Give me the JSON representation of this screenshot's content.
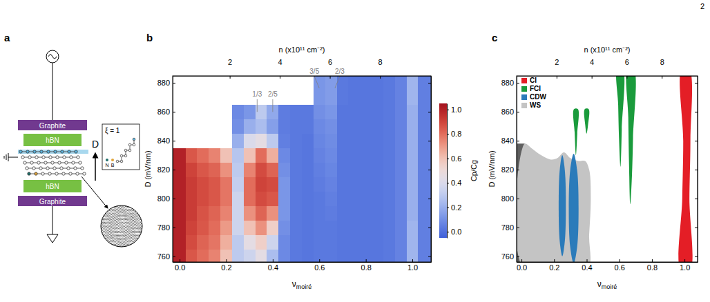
{
  "page_number": "2",
  "panel_labels": [
    "a",
    "b",
    "c"
  ],
  "schematic": {
    "top_gate": "Graphite",
    "top_dielectric": "hBN",
    "bottom_dielectric": "hBN",
    "bottom_gate": "Graphite",
    "field": "D",
    "inset": "ξ = 1",
    "atoms": [
      "N",
      "B"
    ]
  },
  "chart_data": [
    {
      "type": "heatmap",
      "x_label": "ν",
      "x_label_sub": "moiré",
      "y_label": "D (mV/nm)",
      "x2_label": "n (x10¹¹ cm⁻²)",
      "xlim": [
        -0.03,
        1.08
      ],
      "ylim": [
        756,
        885
      ],
      "x2lim": [
        -0.28,
        10.04
      ],
      "xticks": [
        {
          "value": 0,
          "label": "0.0"
        },
        0.2,
        0.4,
        0.6,
        0.8,
        {
          "value": 1,
          "label": "1.0"
        }
      ],
      "yticks": [
        760,
        780,
        800,
        820,
        840,
        860,
        880
      ],
      "x2ticks": [
        2,
        4,
        6,
        8
      ],
      "x_edges": [
        -0.03,
        0.025,
        0.075,
        0.125,
        0.175,
        0.225,
        0.275,
        0.325,
        0.375,
        0.425,
        0.475,
        0.525,
        0.575,
        0.625,
        0.675,
        0.725,
        0.775,
        0.825,
        0.875,
        0.925,
        0.975,
        1.025,
        1.08
      ],
      "y_edges": [
        756,
        765,
        775,
        785,
        795,
        805,
        815,
        825,
        835,
        845,
        855,
        865,
        875,
        885
      ],
      "z": [
        [
          1.0,
          0.85,
          0.8,
          0.75,
          0.6,
          0.3,
          0.35,
          0.45,
          0.25,
          0.08,
          0.03,
          0.02,
          0.03,
          0.03,
          0.02,
          0.02,
          0.02,
          0.02,
          0.03,
          0.06,
          0.22,
          0.05
        ],
        [
          1.0,
          0.88,
          0.82,
          0.78,
          0.65,
          0.3,
          0.45,
          0.55,
          0.35,
          0.08,
          0.03,
          0.02,
          0.03,
          0.03,
          0.02,
          0.02,
          0.02,
          0.02,
          0.03,
          0.06,
          0.22,
          0.05
        ],
        [
          1.0,
          0.9,
          0.85,
          0.8,
          0.7,
          0.35,
          0.6,
          0.72,
          0.55,
          0.1,
          0.03,
          0.02,
          0.03,
          0.03,
          0.02,
          0.02,
          0.02,
          0.02,
          0.03,
          0.06,
          0.22,
          0.05
        ],
        [
          1.0,
          0.92,
          0.86,
          0.82,
          0.75,
          0.35,
          0.72,
          0.82,
          0.72,
          0.12,
          0.03,
          0.02,
          0.03,
          0.04,
          0.02,
          0.02,
          0.02,
          0.02,
          0.03,
          0.06,
          0.2,
          0.05
        ],
        [
          1.0,
          0.92,
          0.88,
          0.85,
          0.78,
          0.35,
          0.8,
          0.88,
          0.85,
          0.12,
          0.03,
          0.02,
          0.03,
          0.05,
          0.02,
          0.02,
          0.02,
          0.02,
          0.03,
          0.06,
          0.2,
          0.05
        ],
        [
          1.0,
          0.92,
          0.88,
          0.85,
          0.78,
          0.32,
          0.8,
          0.9,
          0.88,
          0.12,
          0.03,
          0.02,
          0.04,
          0.06,
          0.02,
          0.02,
          0.02,
          0.02,
          0.03,
          0.06,
          0.2,
          0.05
        ],
        [
          1.0,
          0.9,
          0.85,
          0.82,
          0.72,
          0.3,
          0.75,
          0.88,
          0.82,
          0.1,
          0.03,
          0.02,
          0.05,
          0.07,
          0.02,
          0.02,
          0.02,
          0.02,
          0.03,
          0.06,
          0.2,
          0.05
        ],
        [
          1.0,
          0.85,
          0.8,
          0.75,
          0.6,
          0.28,
          0.6,
          0.8,
          0.65,
          0.08,
          0.03,
          0.02,
          0.06,
          0.08,
          0.02,
          0.02,
          0.02,
          0.02,
          0.03,
          0.06,
          0.2,
          0.05
        ],
        [
          null,
          null,
          null,
          null,
          null,
          0.2,
          0.4,
          0.45,
          0.3,
          0.05,
          0.03,
          0.02,
          0.07,
          0.09,
          0.02,
          0.02,
          0.02,
          0.02,
          0.03,
          0.06,
          0.2,
          0.05
        ],
        [
          null,
          null,
          null,
          null,
          null,
          0.1,
          0.2,
          0.25,
          0.15,
          0.04,
          0.03,
          0.03,
          0.08,
          0.1,
          0.02,
          0.02,
          0.02,
          0.02,
          0.03,
          0.06,
          0.2,
          0.05
        ],
        [
          null,
          null,
          null,
          null,
          null,
          0.08,
          0.12,
          0.3,
          0.18,
          0.04,
          0.03,
          0.03,
          0.1,
          0.12,
          0.02,
          0.02,
          0.02,
          0.02,
          0.03,
          0.06,
          0.2,
          0.05
        ],
        [
          null,
          null,
          null,
          null,
          null,
          null,
          null,
          null,
          null,
          null,
          null,
          null,
          0.12,
          0.14,
          0.03,
          0.02,
          0.02,
          0.02,
          0.03,
          0.06,
          0.22,
          0.05
        ],
        [
          null,
          null,
          null,
          null,
          null,
          null,
          null,
          null,
          null,
          null,
          null,
          null,
          0.12,
          0.14,
          0.03,
          0.02,
          0.02,
          0.02,
          0.03,
          0.06,
          0.22,
          0.05
        ]
      ],
      "colorbar": {
        "label": "Cp/Cg",
        "range": [
          -0.05,
          1.05
        ],
        "ticks": [
          {
            "value": 0,
            "label": "0.0"
          },
          0.2,
          0.4,
          0.6,
          0.8,
          {
            "value": 1,
            "label": "1.0"
          }
        ]
      },
      "annotations": [
        {
          "text": "1/3",
          "x": 0.333
        },
        {
          "text": "2/5",
          "x": 0.4
        },
        {
          "text": "3/5",
          "x": 0.6
        },
        {
          "text": "2/3",
          "x": 0.667
        }
      ]
    },
    {
      "type": "area",
      "x_label": "ν",
      "x_label_sub": "moiré",
      "y_label": "D (mV/nm)",
      "x2_label": "n (x10¹¹ cm⁻²)",
      "xlim": [
        -0.03,
        1.08
      ],
      "ylim": [
        756,
        885
      ],
      "x2lim": [
        -0.28,
        10.04
      ],
      "xticks": [
        {
          "value": 0,
          "label": "0.0"
        },
        0.2,
        0.4,
        0.6,
        0.8,
        {
          "value": 1,
          "label": "1.0"
        }
      ],
      "yticks": [
        760,
        780,
        800,
        820,
        840,
        860,
        880
      ],
      "x2ticks": [
        2,
        4,
        6,
        8
      ],
      "legend": "top-left",
      "series": [
        {
          "name": "CI",
          "color": "#e41e26",
          "polygons": [
            {
              "x": [
                0.978,
                0.986,
                0.992,
                0.984,
                1.028,
                1.036,
                1.03,
                1.033
              ],
              "y": [
                750,
                800,
                840,
                890,
                890,
                840,
                800,
                750
              ]
            }
          ]
        },
        {
          "name": "FCI",
          "color": "#1a9b3c",
          "polygons": [
            {
              "x": [
                0.322,
                0.346,
                0.342,
                0.334,
                0.326
              ],
              "y": [
                862,
                862,
                845,
                830,
                846
              ]
            },
            {
              "x": [
                0.388,
                0.412,
                0.408,
                0.399,
                0.391
              ],
              "y": [
                862,
                862,
                851,
                845,
                851
              ]
            },
            {
              "x": [
                0.588,
                0.62,
                0.615,
                0.607,
                0.598,
                0.593
              ],
              "y": [
                890,
                890,
                848,
                822,
                842,
                865
              ]
            },
            {
              "x": [
                0.652,
                0.688,
                0.684,
                0.676,
                0.667,
                0.66,
                0.655
              ],
              "y": [
                890,
                890,
                842,
                812,
                796,
                822,
                856
              ]
            }
          ]
        },
        {
          "name": "CDW",
          "color": "#2b7bba",
          "polygons": [
            {
              "x": [
                0.272,
                0.2656,
                0.25,
                0.2344,
                0.228,
                0.2344,
                0.25,
                0.2656
              ],
              "y": [
                795,
                819.7,
                830,
                819.7,
                795,
                770.3,
                760,
                770.3
              ]
            },
            {
              "x": [
                0.35,
                0.341,
                0.32,
                0.299,
                0.29,
                0.299,
                0.32,
                0.341
              ],
              "y": [
                793,
                819.9,
                831,
                819.9,
                793,
                766.1,
                755,
                766.1
              ]
            }
          ]
        },
        {
          "name": "WS",
          "color": "#c4c4c4",
          "polygons": [
            {
              "x": [
                0.02,
                0.02,
                0.06,
                0.12,
                0.18,
                0.22,
                0.26,
                0.3,
                0.35,
                0.39,
                0.415,
                0.425,
                0.415,
                0.4
              ],
              "y": [
                750,
                838,
                835,
                830,
                827,
                828,
                832,
                828,
                826,
                826,
                820,
                800,
                775,
                750
              ]
            }
          ]
        },
        {
          "color": "#5f5f5f",
          "polygons": [
            {
              "x": [
                -0.04,
                0.02,
                0.02,
                -0.04
              ],
              "y": [
                750,
                750,
                838,
                838
              ]
            }
          ]
        }
      ]
    }
  ]
}
